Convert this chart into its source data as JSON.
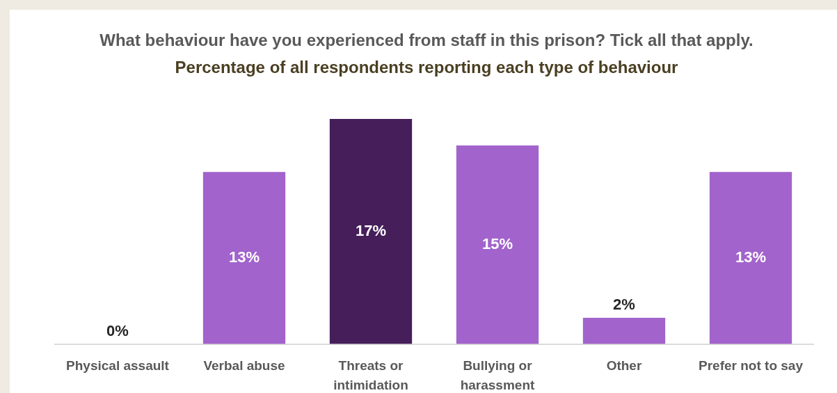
{
  "chart_data": {
    "type": "bar",
    "title": "What behaviour have you experienced from staff in this prison? Tick all that apply.",
    "subtitle": "Percentage of all respondents reporting each type of behaviour",
    "categories": [
      "Physical assault",
      "Verbal abuse",
      "Threats or intimidation",
      "Bullying or harassment",
      "Other",
      "Prefer not to say"
    ],
    "values": [
      0,
      13,
      17,
      15,
      2,
      13
    ],
    "colors": [
      "#a263cc",
      "#a263cc",
      "#451e5a",
      "#a263cc",
      "#a263cc",
      "#a263cc"
    ],
    "value_labels": [
      "0%",
      "13%",
      "17%",
      "15%",
      "2%",
      "13%"
    ],
    "ylim": [
      0,
      17
    ]
  }
}
